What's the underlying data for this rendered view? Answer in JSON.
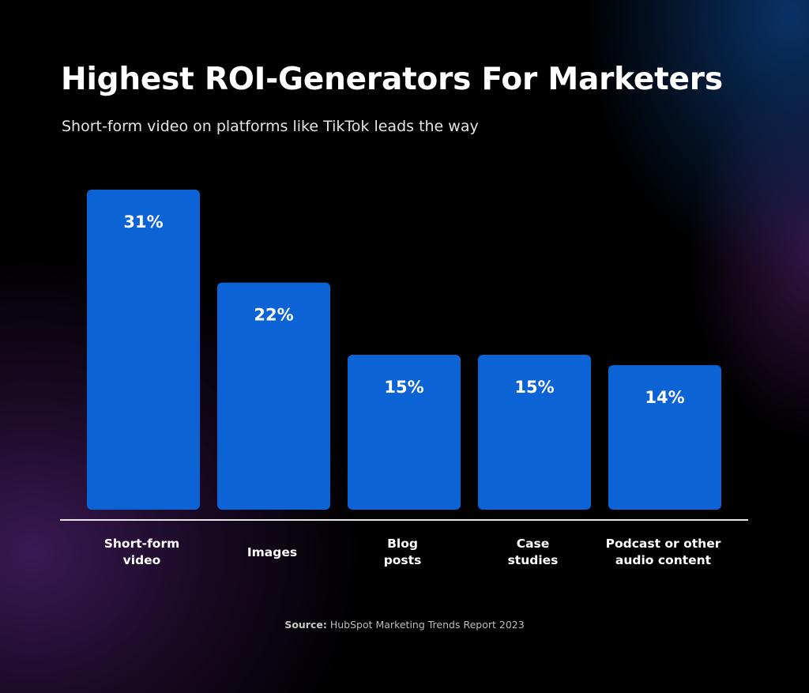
{
  "title": "Highest ROI-Generators For Marketers",
  "subtitle": "Short-form video on platforms like TikTok leads the way",
  "source": {
    "label": "Source:",
    "text": "HubSpot Marketing Trends Report 2023"
  },
  "colors": {
    "bar": "#0B63D6",
    "axis": "#e8e8e8",
    "text": "#ffffff",
    "background": "#000000"
  },
  "chart_data": {
    "type": "bar",
    "title": "Highest ROI-Generators For Marketers",
    "subtitle": "Short-form video on platforms like TikTok leads the way",
    "xlabel": "",
    "ylabel": "",
    "categories": [
      [
        "Short-form",
        "video"
      ],
      [
        "Images"
      ],
      [
        "Blog",
        "posts"
      ],
      [
        "Case",
        "studies"
      ],
      [
        "Podcast or other",
        "audio content"
      ]
    ],
    "values": [
      31,
      22,
      15,
      15,
      14
    ],
    "value_labels": [
      "31%",
      "22%",
      "15%",
      "15%",
      "14%"
    ],
    "unit": "%",
    "ylim": [
      0,
      31
    ],
    "grid": false,
    "legend": "none"
  }
}
